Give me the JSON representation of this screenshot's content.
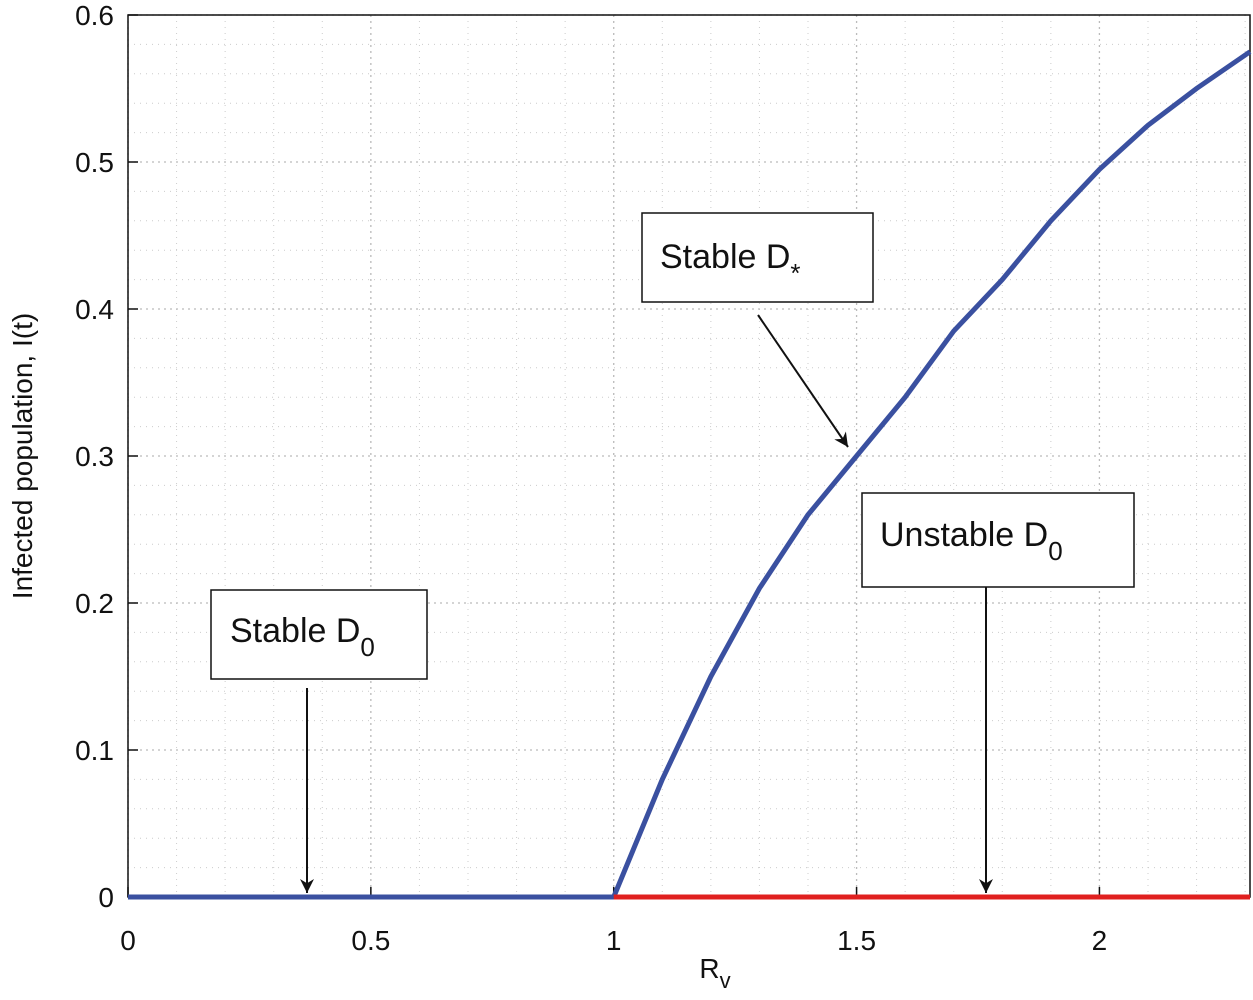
{
  "chart_data": {
    "type": "line",
    "xlabel": {
      "text": "R",
      "sub": "v"
    },
    "ylabel": "Infected population, I(t)",
    "series": [
      {
        "color": "#3a50a0",
        "x": [
          0,
          0.5,
          1,
          1.05,
          1.1,
          1.2,
          1.3,
          1.4,
          1.5,
          1.6,
          1.7,
          1.8,
          1.9,
          2.0,
          2.1,
          2.2,
          2.31
        ],
        "values": [
          0,
          0,
          0,
          0.04,
          0.08,
          0.15,
          0.21,
          0.26,
          0.3,
          0.34,
          0.385,
          0.42,
          0.46,
          0.495,
          0.525,
          0.55,
          0.575
        ]
      },
      {
        "color": "#e0201f",
        "x": [
          1,
          2.31
        ],
        "values": [
          0,
          0
        ]
      }
    ],
    "annotations": [
      {
        "text": "Stable D",
        "sub": "0"
      },
      {
        "text": "Stable D",
        "sub": "*"
      },
      {
        "text": "Unstable D",
        "sub": "0"
      }
    ],
    "xlim": [
      0,
      2.31
    ],
    "ylim": [
      0,
      0.6
    ],
    "xticks": [
      0,
      0.5,
      1,
      1.5,
      2
    ],
    "yticks": [
      0,
      0.1,
      0.2,
      0.3,
      0.4,
      0.5,
      0.6
    ],
    "grid": true,
    "minor_grid": true
  }
}
